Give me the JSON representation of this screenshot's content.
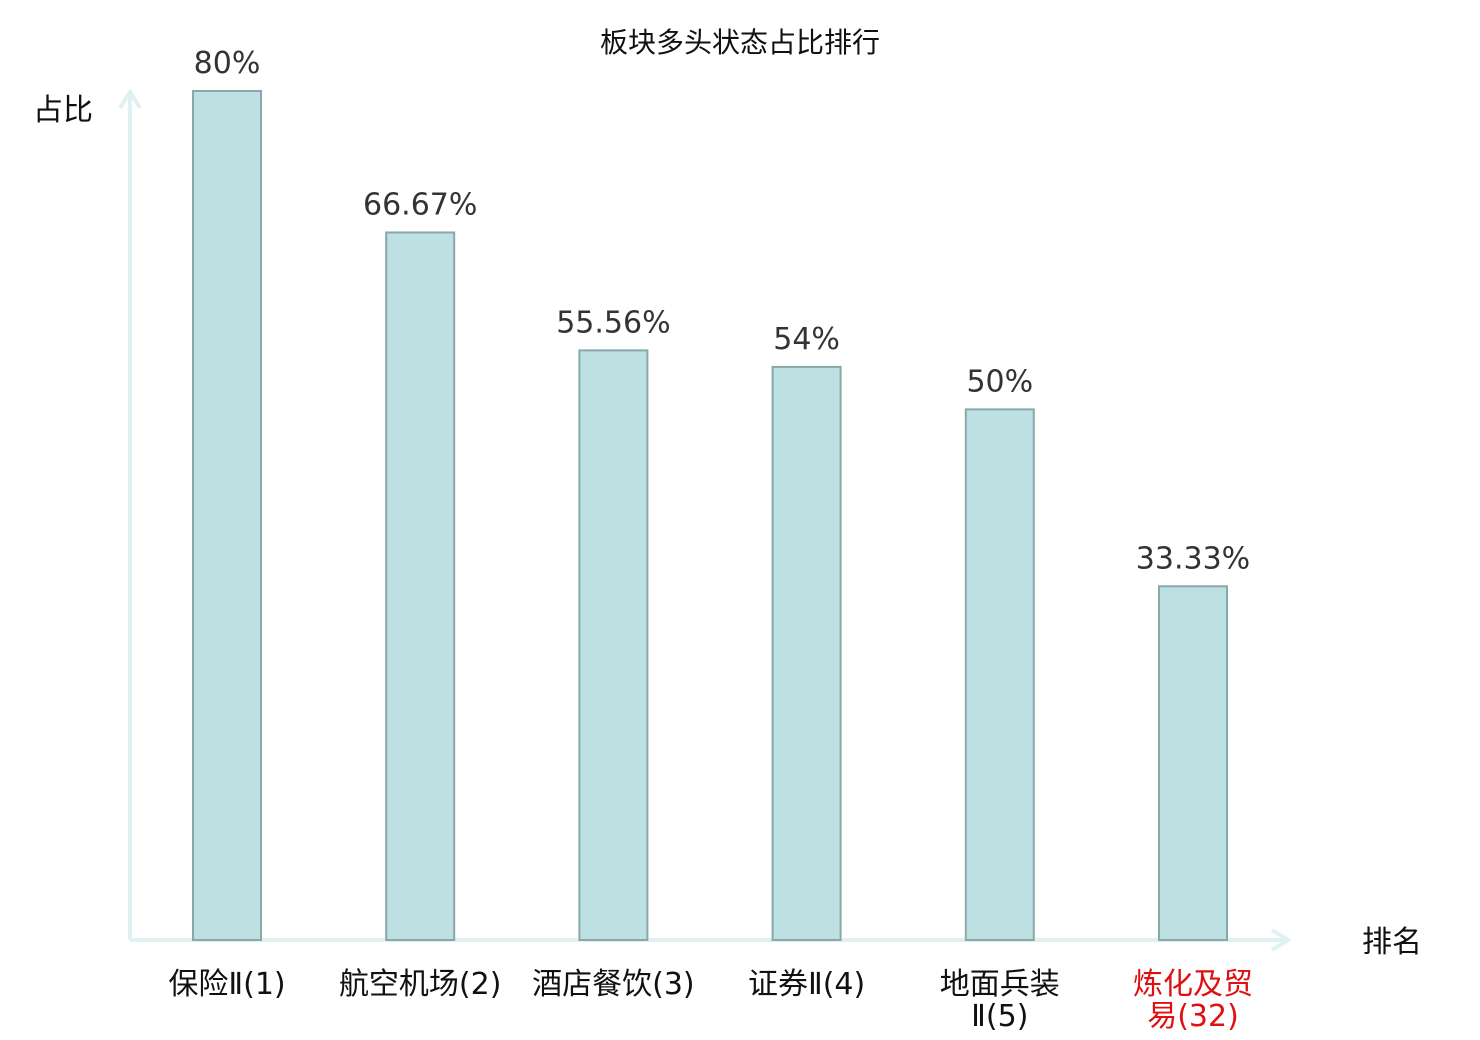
{
  "chart_data": {
    "type": "bar",
    "title": "板块多头状态占比排行",
    "ylabel": "占比",
    "xlabel": "排名",
    "ylim": [
      0,
      80
    ],
    "grid": false,
    "categories": [
      {
        "name_lines": [
          "保险Ⅱ(1)"
        ],
        "highlight": false
      },
      {
        "name_lines": [
          "航空机场(2)"
        ],
        "highlight": false
      },
      {
        "name_lines": [
          "酒店餐饮(3)"
        ],
        "highlight": false
      },
      {
        "name_lines": [
          "证券Ⅱ(4)"
        ],
        "highlight": false
      },
      {
        "name_lines": [
          "地面兵装",
          "Ⅱ(5)"
        ],
        "highlight": false
      },
      {
        "name_lines": [
          "炼化及贸",
          "易(32)"
        ],
        "highlight": true
      }
    ],
    "values": [
      80,
      66.67,
      55.56,
      54,
      50,
      33.33
    ],
    "value_labels": [
      "80%",
      "66.67%",
      "55.56%",
      "54%",
      "50%",
      "33.33%"
    ]
  },
  "colors": {
    "bar_fill": "#bde0e3",
    "bar_stroke": "#8aa8aa",
    "axis": "#dff1f0",
    "highlight_text": "#e01010",
    "normal_text": "#111111"
  }
}
